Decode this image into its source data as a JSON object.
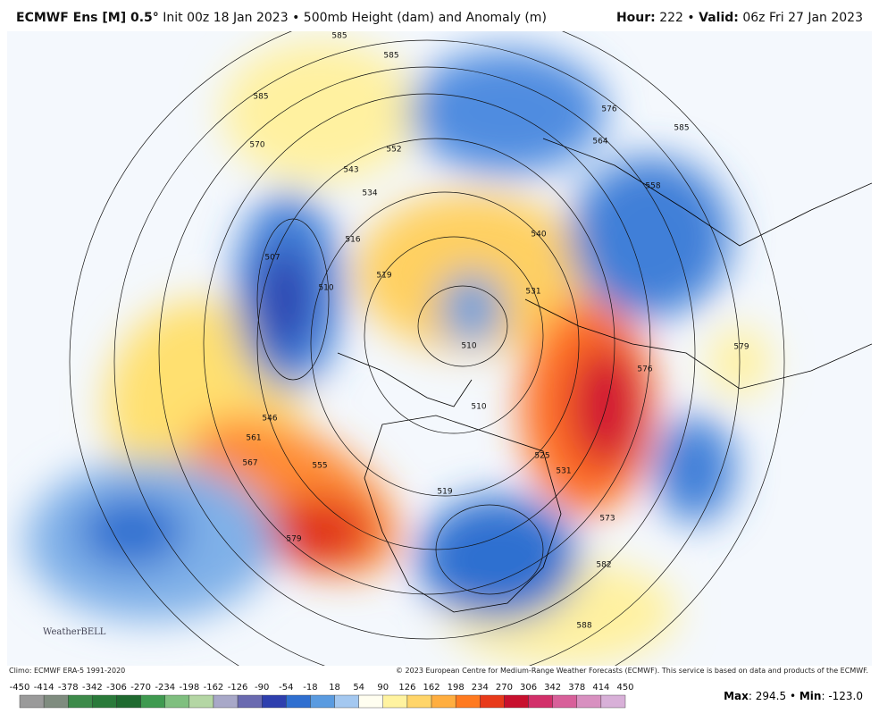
{
  "header": {
    "model": "ECMWF Ens [M] 0.5°",
    "init": "Init 00z 18 Jan 2023",
    "separator": "•",
    "product": "500mb Height (dam) and Anomaly (m)",
    "hour_label": "Hour:",
    "hour": "222",
    "valid_label": "Valid:",
    "valid": "06z Fri 27 Jan 2023"
  },
  "contour_labels": [
    585,
    585,
    585,
    570,
    552,
    543,
    534,
    516,
    507,
    510,
    519,
    540,
    531,
    510,
    510,
    525,
    531,
    576,
    579,
    573,
    582,
    588,
    576,
    585,
    558,
    546,
    561,
    567,
    555,
    579,
    519,
    564
  ],
  "logo": "WeatherBELL",
  "footer": {
    "climo": "Climo: ECMWF ERA-5 1991-2020",
    "copyright": "© 2023 European Centre for Medium-Range Weather Forecasts (ECMWF). This service is based on data and products of the ECMWF.",
    "max_label": "Max",
    "max": "294.5",
    "min_label": "Min",
    "min": "-123.0"
  },
  "colorbar": {
    "ticks": [
      -450,
      -414,
      -378,
      -342,
      -306,
      -270,
      -234,
      -198,
      -162,
      -126,
      -90,
      -54,
      -18,
      18,
      54,
      90,
      126,
      162,
      198,
      234,
      270,
      306,
      342,
      378,
      414,
      450
    ],
    "colors": [
      "#9a9a9a",
      "#7f8c7f",
      "#3d8a4a",
      "#2a7a3a",
      "#1f6a30",
      "#3f9a50",
      "#7fbf7f",
      "#b4d6a4",
      "#a8a8c8",
      "#6a6ab0",
      "#2e3fae",
      "#2f6fd0",
      "#5a9be0",
      "#a4c8f0",
      "#fffef0",
      "#fff3a0",
      "#ffd56a",
      "#ffae40",
      "#ff7a20",
      "#e83a1a",
      "#c8102e",
      "#d2306a",
      "#d8609a",
      "#d890c0",
      "#d8b0d8"
    ]
  }
}
